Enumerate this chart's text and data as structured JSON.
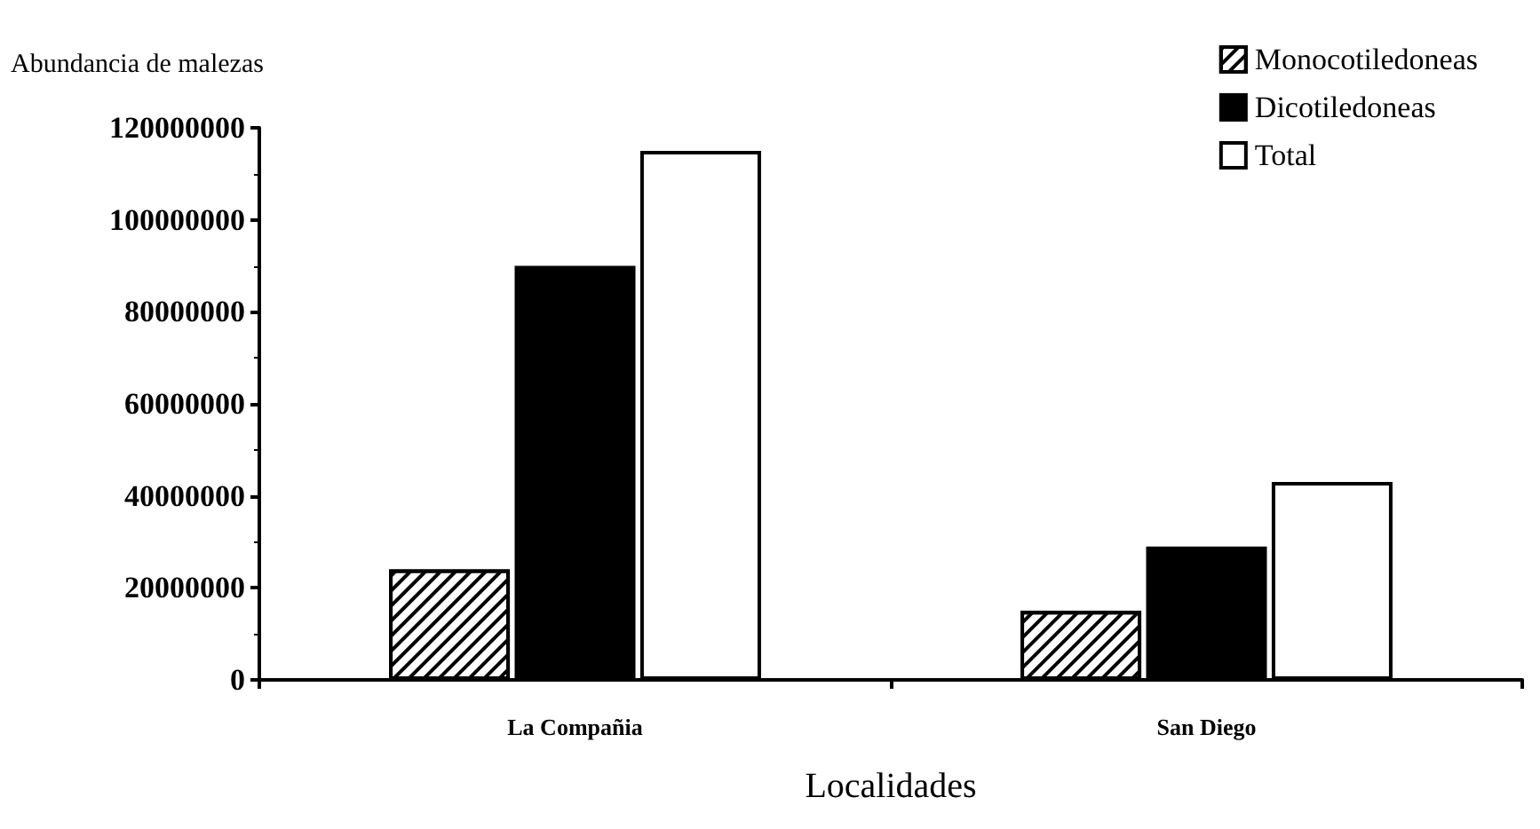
{
  "chart_data": {
    "type": "bar",
    "ylabel": "Abundancia de malezas",
    "xlabel": "Localidades",
    "categories": [
      "La Compañia",
      "San Diego"
    ],
    "series": [
      {
        "name": "Monocotiledoneas",
        "color": "#ffffff",
        "values": [
          24000000,
          15000000
        ]
      },
      {
        "name": "Dicotiledoneas",
        "color": "#000000",
        "values": [
          90000000,
          29000000
        ]
      },
      {
        "name": "Total",
        "color": "#ffffff",
        "values": [
          115000000,
          43000000
        ]
      }
    ],
    "ylim": [
      0,
      120000000
    ],
    "yticks": [
      0,
      20000000,
      40000000,
      60000000,
      80000000,
      100000000,
      120000000
    ],
    "grid": false,
    "legend": "top right"
  }
}
